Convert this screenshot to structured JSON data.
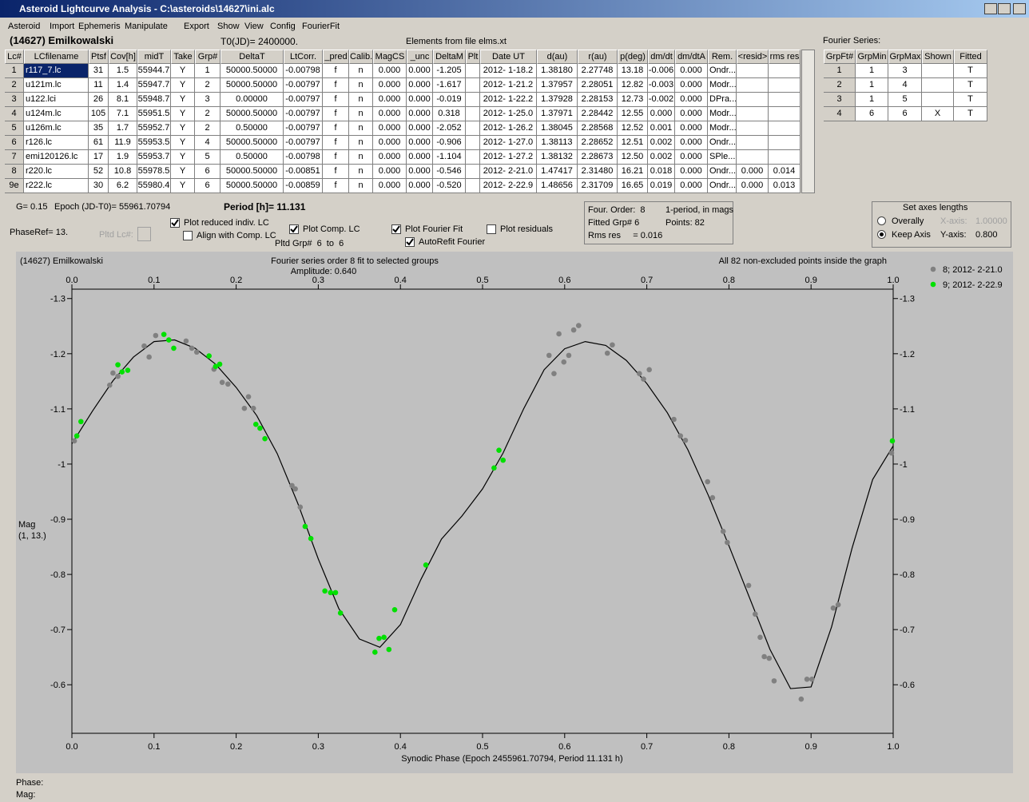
{
  "window": {
    "title": "Asteroid Lightcurve Analysis - C:\\asteroids\\14627\\ini.alc"
  },
  "menu": [
    "Asteroid",
    "Import",
    "Ephemeris",
    "Manipulate",
    "Export",
    "Show",
    "View",
    "Config",
    "FourierFit"
  ],
  "header": {
    "asteroid": "(14627) Emilkowalski",
    "t0": "T0(JD)= 2400000.",
    "elements": "Elements from file elms.xt"
  },
  "lc_table": {
    "columns": [
      "Lc#",
      "LCfilename",
      "Ptsf",
      "Cov[h]",
      "midT",
      "Take",
      "Grp#",
      "DeltaT",
      "LtCorr.",
      "_pred",
      "Calib.",
      "MagCS",
      "_unc",
      "DeltaM",
      "Plt",
      "Date UT",
      "d(au)",
      "r(au)",
      "p(deg)",
      "dm/dt",
      "dm/dtA",
      "Rem.",
      "<resid>",
      "rms res"
    ],
    "rows": [
      [
        "1",
        "r117_7.lc",
        "31",
        "1.5",
        "55944.7",
        "Y",
        "1",
        "50000.50000",
        "-0.00798",
        "f",
        "n",
        "0.000",
        "0.000",
        "-1.205",
        null,
        "2012- 1-18.2",
        "1.38180",
        "2.27748",
        "13.18",
        "-0.006",
        "0.000",
        "Ondr...",
        null,
        null
      ],
      [
        "2",
        "u121m.lc",
        "11",
        "1.4",
        "55947.7",
        "Y",
        "2",
        "50000.50000",
        "-0.00797",
        "f",
        "n",
        "0.000",
        "0.000",
        "-1.617",
        null,
        "2012- 1-21.2",
        "1.37957",
        "2.28051",
        "12.82",
        "-0.003",
        "0.000",
        "Modr...",
        null,
        null
      ],
      [
        "3",
        "u122.lci",
        "26",
        "8.1",
        "55948.7",
        "Y",
        "3",
        "0.00000",
        "-0.00797",
        "f",
        "n",
        "0.000",
        "0.000",
        "-0.019",
        null,
        "2012- 1-22.2",
        "1.37928",
        "2.28153",
        "12.73",
        "-0.002",
        "0.000",
        "DPra...",
        null,
        null
      ],
      [
        "4",
        "u124m.lc",
        "105",
        "7.1",
        "55951.5",
        "Y",
        "2",
        "50000.50000",
        "-0.00797",
        "f",
        "n",
        "0.000",
        "0.000",
        "0.318",
        null,
        "2012- 1-25.0",
        "1.37971",
        "2.28442",
        "12.55",
        "0.000",
        "0.000",
        "Modr...",
        null,
        null
      ],
      [
        "5",
        "u126m.lc",
        "35",
        "1.7",
        "55952.7",
        "Y",
        "2",
        "0.50000",
        "-0.00797",
        "f",
        "n",
        "0.000",
        "0.000",
        "-2.052",
        null,
        "2012- 1-26.2",
        "1.38045",
        "2.28568",
        "12.52",
        "0.001",
        "0.000",
        "Modr...",
        null,
        null
      ],
      [
        "6",
        "r126.lc",
        "61",
        "11.9",
        "55953.5",
        "Y",
        "4",
        "50000.50000",
        "-0.00797",
        "f",
        "n",
        "0.000",
        "0.000",
        "-0.906",
        null,
        "2012- 1-27.0",
        "1.38113",
        "2.28652",
        "12.51",
        "0.002",
        "0.000",
        "Ondr...",
        null,
        null
      ],
      [
        "7",
        "emi120126.lc",
        "17",
        "1.9",
        "55953.7",
        "Y",
        "5",
        "0.50000",
        "-0.00798",
        "f",
        "n",
        "0.000",
        "0.000",
        "-1.104",
        null,
        "2012- 1-27.2",
        "1.38132",
        "2.28673",
        "12.50",
        "0.002",
        "0.000",
        "SPle...",
        null,
        null
      ],
      [
        "8",
        "r220.lc",
        "52",
        "10.8",
        "55978.5",
        "Y",
        "6",
        "50000.50000",
        "-0.00851",
        "f",
        "n",
        "0.000",
        "0.000",
        "-0.546",
        null,
        "2012- 2-21.0",
        "1.47417",
        "2.31480",
        "16.21",
        "0.018",
        "0.000",
        "Ondr...",
        "0.000",
        "0.014"
      ],
      [
        "9e",
        "r222.lc",
        "30",
        "6.2",
        "55980.4",
        "Y",
        "6",
        "50000.50000",
        "-0.00859",
        "f",
        "n",
        "0.000",
        "0.000",
        "-0.520",
        null,
        "2012- 2-22.9",
        "1.48656",
        "2.31709",
        "16.65",
        "0.019",
        "0.000",
        "Ondr...",
        "0.000",
        "0.013"
      ]
    ]
  },
  "fourier_table": {
    "label": "Fourier Series:",
    "columns": [
      "GrpFt#",
      "GrpMin",
      "GrpMax",
      "Shown",
      "Fitted"
    ],
    "rows": [
      [
        "1",
        "1",
        "3",
        null,
        "T"
      ],
      [
        "2",
        "1",
        "4",
        null,
        "T"
      ],
      [
        "3",
        "1",
        "5",
        null,
        "T"
      ],
      [
        "4",
        "6",
        "6",
        "X",
        "T"
      ]
    ]
  },
  "controls": {
    "g": "G= 0.15",
    "epoch": "Epoch (JD-T0)= 55961.70794",
    "period": "Period [h]= 11.131",
    "phaseref": "PhaseRef= 13.",
    "pltd_lc": "Pltd Lc#:",
    "pltd_grp": "Pltd Grp#  6  to  6",
    "checkboxes": [
      {
        "label": "Plot reduced indiv. LC",
        "checked": true
      },
      {
        "label": "Align with Comp. LC",
        "checked": false
      },
      {
        "label": "Plot Comp. LC",
        "checked": true
      },
      {
        "label": "Plot Fourier Fit",
        "checked": true
      },
      {
        "label": "AutoRefit Fourier",
        "checked": true
      },
      {
        "label": "Plot residuals",
        "checked": false
      }
    ]
  },
  "info_box": {
    "lines": [
      "Four. Order:  8",
      "1-period, in mags",
      "Fitted Grp# 6",
      "Points: 82",
      "Rms res     = 0.016"
    ]
  },
  "axes_box": {
    "title": "Set axes lengths",
    "radios": [
      {
        "label": "Overally",
        "selected": false
      },
      {
        "label": "Keep Axis",
        "selected": true
      }
    ],
    "x_axis_label": "X-axis:",
    "x_axis_value": "1.00000",
    "y_axis_label": "Y-axis:",
    "y_axis_value": "0.800"
  },
  "chart": {
    "type": "scatter",
    "name": "(14627) Emilkowalski",
    "title": "Fourier series order 8 fit to selected groups",
    "subtitle": "Amplitude: 0.640",
    "note": "All 82 non-excluded points inside the graph",
    "y_label": "Mag",
    "y_label2": "(1, 13.)",
    "x_label": "Synodic Phase (Epoch 2455961.70794, Period 11.131 h)",
    "xlim": [
      0,
      1
    ],
    "ylim": [
      -0.512,
      -1.317
    ],
    "xticks": [
      {
        "value": 0,
        "label": "0.0"
      },
      0.1,
      0.2,
      0.3,
      0.4,
      0.5,
      0.6,
      0.7,
      0.8,
      0.9,
      {
        "value": 1,
        "label": "1.0"
      }
    ],
    "yticks": [
      -1.3,
      -1.2,
      -1.1,
      -1.0,
      -0.9,
      -0.8,
      -0.7,
      -0.6
    ],
    "series": [
      {
        "name": "8; 2012- 2-21.0",
        "color": "#808080",
        "x": [
          0.003,
          0.046,
          0.05,
          0.056,
          0.088,
          0.094,
          0.102,
          0.139,
          0.146,
          0.152,
          0.173,
          0.183,
          0.19,
          0.21,
          0.215,
          0.221,
          0.268,
          0.272,
          0.278,
          0.581,
          0.587,
          0.593,
          0.599,
          0.605,
          0.611,
          0.617,
          0.652,
          0.658,
          0.691,
          0.696,
          0.703,
          0.733,
          0.741,
          0.747,
          0.774,
          0.78,
          0.793,
          0.798,
          0.824,
          0.832,
          0.838,
          0.843,
          0.849,
          0.855,
          0.888,
          0.895,
          0.901,
          0.927,
          0.933,
          0.998
        ],
        "values": [
          -1.042,
          -1.143,
          -1.165,
          -1.159,
          -1.214,
          -1.194,
          -1.233,
          -1.223,
          -1.21,
          -1.203,
          -1.172,
          -1.148,
          -1.145,
          -1.101,
          -1.122,
          -1.101,
          -0.961,
          -0.955,
          -0.922,
          -1.197,
          -1.164,
          -1.236,
          -1.185,
          -1.197,
          -1.243,
          -1.251,
          -1.201,
          -1.216,
          -1.164,
          -1.154,
          -1.171,
          -1.081,
          -1.051,
          -1.043,
          -0.968,
          -0.939,
          -0.878,
          -0.858,
          -0.78,
          -0.728,
          -0.686,
          -0.651,
          -0.648,
          -0.607,
          -0.574,
          -0.61,
          -0.61,
          -0.739,
          -0.745,
          -1.02
        ]
      },
      {
        "name": "9; 2012- 2-22.9",
        "color": "#00e000",
        "x": [
          0.006,
          0.011,
          0.056,
          0.061,
          0.068,
          0.112,
          0.118,
          0.124,
          0.167,
          0.175,
          0.18,
          0.224,
          0.229,
          0.235,
          0.284,
          0.291,
          0.308,
          0.315,
          0.321,
          0.327,
          0.369,
          0.374,
          0.38,
          0.386,
          0.393,
          0.431,
          0.514,
          0.52,
          0.525,
          0.999
        ],
        "values": [
          -1.051,
          -1.077,
          -1.18,
          -1.167,
          -1.17,
          -1.235,
          -1.225,
          -1.21,
          -1.196,
          -1.177,
          -1.181,
          -1.072,
          -1.065,
          -1.046,
          -0.887,
          -0.865,
          -0.77,
          -0.767,
          -0.767,
          -0.73,
          -0.659,
          -0.684,
          -0.686,
          -0.664,
          -0.736,
          -0.817,
          -0.993,
          -1.025,
          -1.007,
          -1.042
        ]
      }
    ],
    "fit": {
      "color": "#000000",
      "x": [
        0,
        0.025,
        0.05,
        0.075,
        0.1,
        0.125,
        0.15,
        0.175,
        0.2,
        0.225,
        0.25,
        0.275,
        0.3,
        0.325,
        0.35,
        0.375,
        0.4,
        0.425,
        0.45,
        0.475,
        0.5,
        0.525,
        0.55,
        0.575,
        0.6,
        0.625,
        0.65,
        0.675,
        0.7,
        0.725,
        0.75,
        0.775,
        0.8,
        0.825,
        0.85,
        0.875,
        0.9,
        0.925,
        0.95,
        0.975,
        1
      ],
      "values": [
        -1.037,
        -1.096,
        -1.151,
        -1.194,
        -1.222,
        -1.225,
        -1.21,
        -1.181,
        -1.139,
        -1.088,
        -1.019,
        -0.929,
        -0.828,
        -0.738,
        -0.683,
        -0.668,
        -0.709,
        -0.791,
        -0.864,
        -0.906,
        -0.955,
        -1.02,
        -1.1,
        -1.171,
        -1.209,
        -1.222,
        -1.215,
        -1.188,
        -1.146,
        -1.093,
        -1.026,
        -0.943,
        -0.852,
        -0.758,
        -0.664,
        -0.593,
        -0.596,
        -0.705,
        -0.848,
        -0.972,
        -1.033
      ]
    }
  },
  "status": {
    "phase": "Phase:",
    "mag": "Mag:"
  }
}
